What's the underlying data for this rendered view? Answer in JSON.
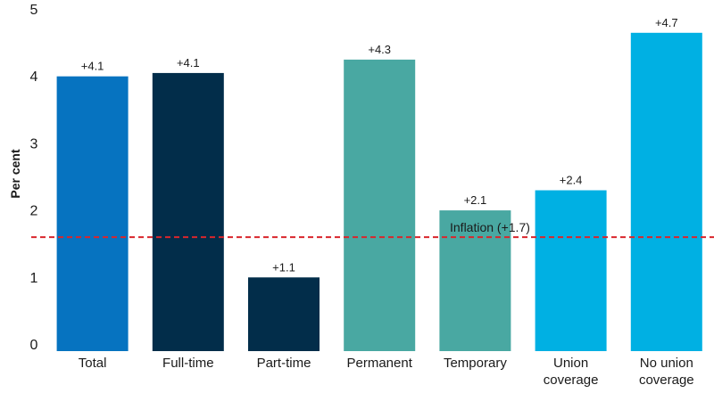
{
  "chart_data": {
    "type": "bar",
    "categories": [
      [
        "Total"
      ],
      [
        "Full-time"
      ],
      [
        "Part-time"
      ],
      [
        "Permanent"
      ],
      [
        "Temporary"
      ],
      [
        "Union",
        "coverage"
      ],
      [
        "No union",
        "coverage"
      ]
    ],
    "values": [
      4.1,
      4.15,
      1.1,
      4.35,
      2.1,
      2.4,
      4.75
    ],
    "value_labels": [
      "+4.1",
      "+4.1",
      "+1.1",
      "+4.3",
      "+2.1",
      "+2.4",
      "+4.7"
    ],
    "colors": [
      "#0673c0",
      "#022d4a",
      "#022d4a",
      "#49a8a2",
      "#49a8a2",
      "#00b0e3",
      "#00b0e3"
    ],
    "ylabel": "Per cent",
    "ylim": [
      0,
      5
    ],
    "yticks": [
      0,
      1,
      2,
      3,
      4,
      5
    ],
    "grid": false,
    "reference_line": {
      "value": 1.7,
      "label": "Inflation (+1.7)",
      "color": "#d9262c",
      "style": "dashed"
    }
  }
}
